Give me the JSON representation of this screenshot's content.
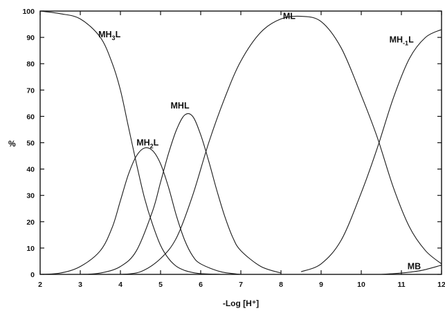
{
  "chart_data": {
    "type": "line",
    "title": "",
    "xlabel": "-Log [H⁺]",
    "ylabel": "%",
    "xlim": [
      2,
      12
    ],
    "ylim": [
      0,
      100
    ],
    "x_ticks": [
      2,
      3,
      4,
      5,
      6,
      7,
      8,
      9,
      10,
      11,
      12
    ],
    "y_ticks": [
      0,
      10,
      20,
      30,
      40,
      50,
      60,
      70,
      80,
      90,
      100
    ],
    "grid": false,
    "legend": "none",
    "series": [
      {
        "name": "MH3L",
        "label_main": "MH",
        "label_sub": "3",
        "label_tail": "L",
        "x": [
          2.0,
          2.5,
          3.0,
          3.5,
          3.8,
          4.0,
          4.2,
          4.4,
          4.6,
          4.8,
          5.0,
          5.2,
          5.4,
          5.6,
          5.8,
          6.0,
          6.5
        ],
        "y": [
          100,
          99,
          97,
          90,
          80,
          70,
          56,
          42,
          29,
          19,
          11,
          6,
          3,
          1.5,
          0.7,
          0.3,
          0
        ]
      },
      {
        "name": "MH2L",
        "label_main": "MH",
        "label_sub": "2",
        "label_tail": "L",
        "x": [
          2.0,
          2.5,
          3.0,
          3.5,
          3.8,
          4.0,
          4.2,
          4.4,
          4.6,
          4.8,
          5.0,
          5.2,
          5.4,
          5.6,
          5.8,
          6.0,
          6.5,
          7.0
        ],
        "y": [
          0,
          0.5,
          3,
          9,
          18,
          28,
          38,
          45,
          48,
          47,
          42,
          33,
          22,
          13,
          7,
          4,
          1,
          0
        ]
      },
      {
        "name": "MHL",
        "label_main": "MHL",
        "label_sub": "",
        "label_tail": "",
        "x": [
          3.0,
          3.5,
          4.0,
          4.4,
          4.8,
          5.0,
          5.2,
          5.4,
          5.6,
          5.8,
          6.0,
          6.2,
          6.4,
          6.6,
          6.8,
          7.0,
          7.5,
          8.0
        ],
        "y": [
          0,
          0.5,
          3,
          9,
          24,
          35,
          46,
          55,
          60.5,
          60,
          53,
          43,
          32,
          22,
          14,
          9,
          3,
          0.5
        ]
      },
      {
        "name": "ML",
        "label_main": "ML",
        "label_sub": "",
        "label_tail": "",
        "x": [
          4.0,
          4.5,
          5.0,
          5.4,
          5.8,
          6.2,
          6.6,
          7.0,
          7.5,
          8.0,
          8.5,
          9.0,
          9.5,
          10.0,
          10.4,
          10.8,
          11.2,
          11.6,
          12.0
        ],
        "y": [
          0,
          1,
          6,
          14,
          30,
          50,
          67,
          81,
          92,
          97,
          98,
          96,
          86,
          68,
          52,
          33,
          18,
          9,
          4
        ]
      },
      {
        "name": "MH-1L",
        "label_main": "MH",
        "label_sub": "-1",
        "label_tail": "L",
        "x": [
          8.5,
          9.0,
          9.5,
          10.0,
          10.4,
          10.8,
          11.2,
          11.6,
          12.0
        ],
        "y": [
          1,
          4,
          13,
          31,
          48,
          67,
          82,
          90,
          93
        ]
      },
      {
        "name": "MB",
        "label_main": "MB",
        "label_sub": "",
        "label_tail": "",
        "x": [
          10.5,
          11.0,
          11.5,
          12.0
        ],
        "y": [
          0,
          0.5,
          1.5,
          3.5
        ]
      }
    ],
    "label_anchors": [
      {
        "series": "MH3L",
        "x": 3.45,
        "y": 90
      },
      {
        "series": "MH2L",
        "x": 4.4,
        "y": 49
      },
      {
        "series": "MHL",
        "x": 5.25,
        "y": 63
      },
      {
        "series": "ML",
        "x": 8.05,
        "y": 97
      },
      {
        "series": "MH-1L",
        "x": 10.7,
        "y": 88
      },
      {
        "series": "MB",
        "x": 11.15,
        "y": 2
      }
    ]
  }
}
